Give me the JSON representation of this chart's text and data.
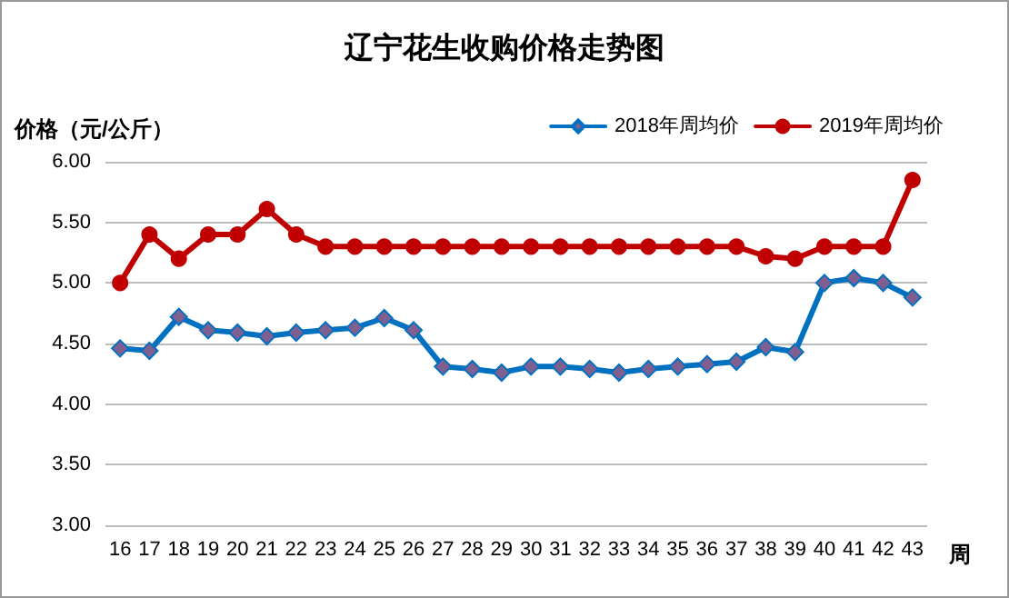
{
  "chart_data": {
    "type": "line",
    "title": "辽宁花生收购价格走势图",
    "ylabel": "价格（元/公斤）",
    "xlabel": "周",
    "categories": [
      "16",
      "17",
      "18",
      "19",
      "20",
      "21",
      "22",
      "23",
      "24",
      "25",
      "26",
      "27",
      "28",
      "29",
      "30",
      "31",
      "32",
      "33",
      "34",
      "35",
      "36",
      "37",
      "38",
      "39",
      "40",
      "41",
      "42",
      "43"
    ],
    "series": [
      {
        "name": "2018年周均价",
        "color": "#0070c0",
        "marker": "diamond",
        "values": [
          4.46,
          4.44,
          4.72,
          4.61,
          4.59,
          4.56,
          4.59,
          4.61,
          4.63,
          4.71,
          4.61,
          4.31,
          4.29,
          4.26,
          4.31,
          4.31,
          4.29,
          4.26,
          4.29,
          4.31,
          4.33,
          4.35,
          4.47,
          4.43,
          5.0,
          5.04,
          5.0,
          4.88
        ]
      },
      {
        "name": "2019年周均价",
        "color": "#c00000",
        "marker": "circle",
        "values": [
          5.0,
          5.4,
          5.2,
          5.4,
          5.4,
          5.61,
          5.4,
          5.3,
          5.3,
          5.3,
          5.3,
          5.3,
          5.3,
          5.3,
          5.3,
          5.3,
          5.3,
          5.3,
          5.3,
          5.3,
          5.3,
          5.3,
          5.22,
          5.2,
          5.3,
          5.3,
          5.3,
          5.85
        ]
      }
    ],
    "ylim": [
      3,
      6
    ],
    "yticks": [
      {
        "value": 3,
        "label": "3.00"
      },
      {
        "value": 3.5,
        "label": "3.50"
      },
      {
        "value": 4,
        "label": "4.00"
      },
      {
        "value": 4.5,
        "label": "4.50"
      },
      {
        "value": 5,
        "label": "5.00"
      },
      {
        "value": 5.5,
        "label": "5.50"
      },
      {
        "value": 6,
        "label": "6.00"
      }
    ],
    "grid": "y",
    "legend": "top right",
    "line_style": "solid"
  }
}
